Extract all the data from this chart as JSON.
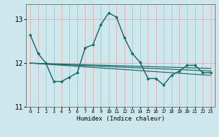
{
  "xlabel": "Humidex (Indice chaleur)",
  "bg_color": "#cce8ec",
  "grid_color": "#e8a0a0",
  "line_color": "#1a6b6b",
  "xlim": [
    -0.5,
    23.5
  ],
  "ylim": [
    11,
    13.35
  ],
  "yticks": [
    11,
    12,
    13
  ],
  "xticks": [
    0,
    1,
    2,
    3,
    4,
    5,
    6,
    7,
    8,
    9,
    10,
    11,
    12,
    13,
    14,
    15,
    16,
    17,
    18,
    19,
    20,
    21,
    22,
    23
  ],
  "series": [
    {
      "x": [
        0,
        1,
        2,
        3,
        4,
        5,
        6,
        7,
        8,
        9,
        10,
        11,
        12,
        13,
        14,
        15,
        16,
        17,
        18,
        19,
        20,
        21,
        22,
        23
      ],
      "y": [
        12.65,
        12.22,
        12.0,
        11.58,
        11.58,
        11.68,
        11.78,
        12.35,
        12.42,
        12.88,
        13.15,
        13.05,
        12.58,
        12.22,
        12.02,
        11.65,
        11.65,
        11.5,
        11.72,
        11.82,
        11.95,
        11.95,
        11.78,
        11.78
      ],
      "marker": "D",
      "markersize": 2.2,
      "linewidth": 1.1
    },
    {
      "x": [
        0,
        23
      ],
      "y": [
        12.0,
        11.72
      ],
      "marker": null,
      "markersize": 0,
      "linewidth": 0.9
    },
    {
      "x": [
        0,
        23
      ],
      "y": [
        12.0,
        11.82
      ],
      "marker": null,
      "markersize": 0,
      "linewidth": 0.9
    },
    {
      "x": [
        0,
        23
      ],
      "y": [
        12.0,
        11.88
      ],
      "marker": null,
      "markersize": 0,
      "linewidth": 0.9
    }
  ]
}
